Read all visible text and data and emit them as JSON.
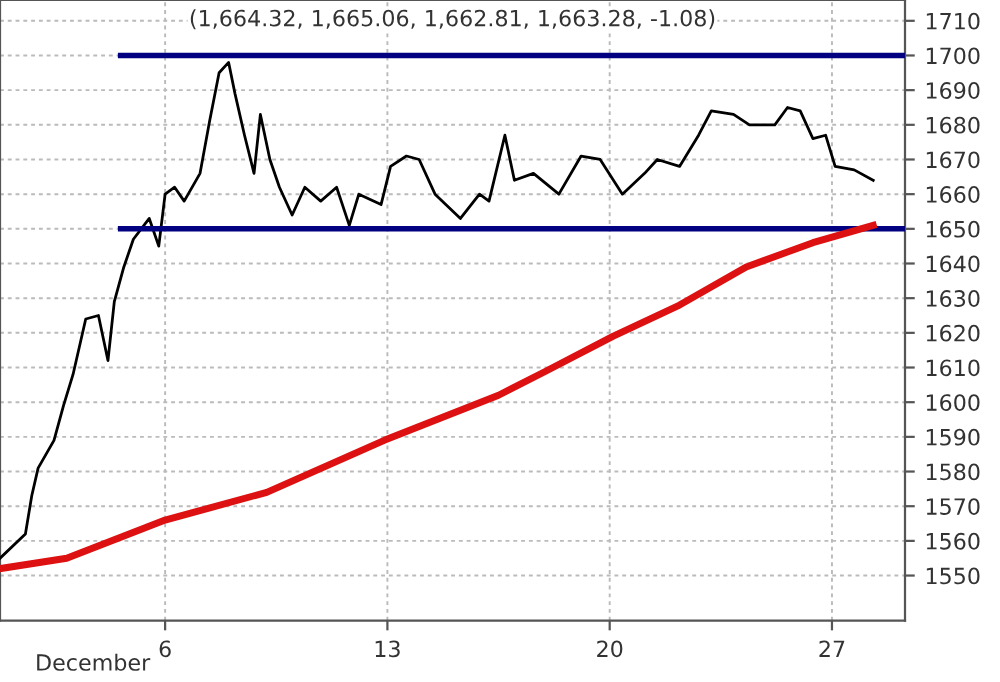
{
  "chart_data": {
    "type": "line",
    "title": "(1,664.32, 1,665.06, 1,662.81, 1,663.28, -1.08)",
    "series": [
      {
        "color": "#000000",
        "x": [
          0.8,
          1.6,
          1.8,
          2.0,
          2.5,
          2.8,
          3.1,
          3.5,
          3.9,
          4.2,
          4.4,
          4.7,
          5.0,
          5.5,
          5.8,
          6.0,
          6.3,
          6.6,
          7.1,
          7.4,
          7.7,
          8.0,
          8.2,
          8.5,
          8.8,
          9.0,
          9.3,
          9.6,
          10.0,
          10.4,
          10.9,
          11.4,
          11.8,
          12.1,
          12.8,
          13.1,
          13.6,
          14.0,
          14.5,
          15.3,
          15.9,
          16.2,
          16.7,
          17.0,
          17.6,
          18.4,
          19.1,
          19.7,
          20.4,
          21.1,
          21.5,
          22.2,
          22.8,
          23.2,
          23.9,
          24.4,
          25.2,
          25.6,
          26.0,
          26.4,
          26.8,
          27.1,
          27.7,
          28.3
        ],
        "values": [
          1555,
          1562,
          1573,
          1581,
          1589,
          1599,
          1608,
          1624,
          1625,
          1612,
          1629,
          1639,
          1647,
          1653,
          1645,
          1660,
          1662,
          1658,
          1666,
          1681,
          1695,
          1698,
          1689,
          1677,
          1666,
          1683,
          1670,
          1662,
          1654,
          1662,
          1658,
          1662,
          1651,
          1660,
          1657,
          1668,
          1671,
          1670,
          1660,
          1653,
          1660,
          1658,
          1677,
          1664,
          1666,
          1660,
          1671,
          1670,
          1660,
          1666,
          1670,
          1668,
          1677,
          1684,
          1683,
          1680,
          1680,
          1685,
          1684,
          1676,
          1677,
          1668,
          1667,
          1664
        ]
      },
      {
        "color": "#000080",
        "x": [
          4.6,
          29.3
        ],
        "values": [
          1700,
          1700
        ]
      },
      {
        "color": "#000080",
        "x": [
          4.6,
          29.3
        ],
        "values": [
          1650,
          1650
        ]
      },
      {
        "color": "#dd1111",
        "x": [
          0.8,
          2.9,
          6.0,
          9.2,
          12.9,
          16.5,
          18.0,
          20.1,
          22.2,
          24.3,
          26.4,
          28.3
        ],
        "values": [
          1552,
          1555,
          1566,
          1574,
          1589,
          1602,
          1609,
          1619,
          1628,
          1639,
          1646,
          1651
        ]
      }
    ],
    "xlim": [
      0.8,
      29.3
    ],
    "xticks": [
      6,
      13,
      20,
      27
    ],
    "ylim": [
      1537,
      1716
    ],
    "yticks": [
      1550,
      1560,
      1570,
      1580,
      1590,
      1600,
      1610,
      1620,
      1630,
      1640,
      1650,
      1660,
      1670,
      1680,
      1690,
      1700,
      1710
    ],
    "annotations": [
      "December"
    ],
    "grid": true,
    "line_style": "solid",
    "marker": "none"
  }
}
